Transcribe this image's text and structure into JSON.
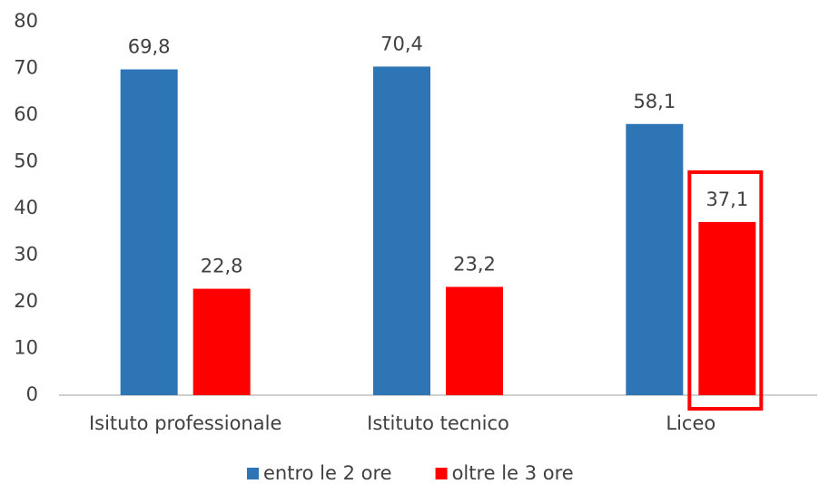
{
  "chart_data": {
    "type": "bar",
    "categories": [
      "Isituto professionale",
      "Istituto tecnico",
      "Liceo"
    ],
    "series": [
      {
        "name": "entro le 2 ore",
        "color": "#2e75b6",
        "values": [
          69.8,
          70.4,
          58.1
        ],
        "value_labels": [
          "69,8",
          "70,4",
          "58,1"
        ]
      },
      {
        "name": "oltre le 3 ore",
        "color": "#ff0000",
        "values": [
          22.8,
          23.2,
          37.1
        ],
        "value_labels": [
          "22,8",
          "23,2",
          "37,1"
        ]
      }
    ],
    "ylim": [
      0,
      80
    ],
    "yticks": [
      0,
      10,
      20,
      30,
      40,
      50,
      60,
      70,
      80
    ],
    "grid": false,
    "legend": "bottom"
  }
}
